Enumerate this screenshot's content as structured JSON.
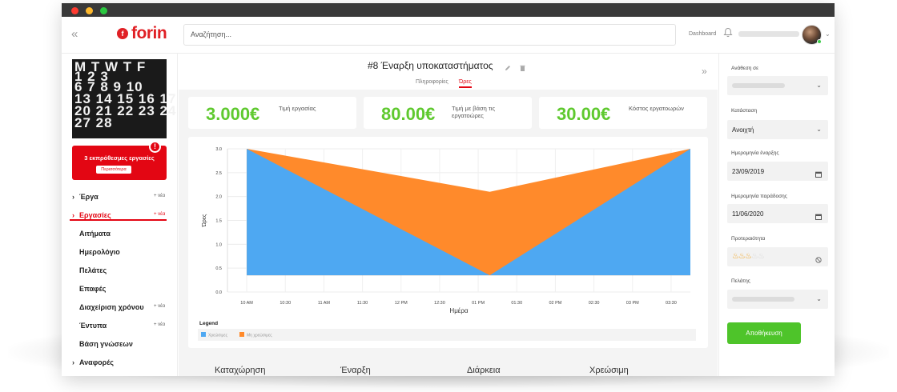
{
  "topbar": {
    "logo": "forin",
    "logo_mark": "f",
    "search_placeholder": "Αναζήτηση...",
    "dashboard_link": "Dashboard",
    "collapse_icon": "double-chevron-left-icon"
  },
  "sidebar": {
    "calendar_rows": [
      "M  T  W  T  F",
      "        1   2   3",
      "6  7  8  9 10",
      "13 14 15 16 17",
      "20 21 22 23 24",
      "27 28"
    ],
    "alert": {
      "text": "3 εκπρόθεσμες εργασίες",
      "button": "Περισσότερα",
      "badge": "!"
    },
    "items": [
      {
        "label": "Έργα",
        "arrow": "›",
        "new": "+ νέο"
      },
      {
        "label": "Εργασίες",
        "arrow": "›",
        "new": "+ νέα"
      },
      {
        "label": "Αιτήματα"
      },
      {
        "label": "Ημερολόγιο"
      },
      {
        "label": "Πελάτες"
      },
      {
        "label": "Επαφές"
      },
      {
        "label": "Διαχείριση χρόνου",
        "new": "+ νέο"
      },
      {
        "label": "Έντυπα",
        "new": "+ νέο"
      },
      {
        "label": "Βάση γνώσεων"
      },
      {
        "label": "Αναφορές",
        "arrow": "›"
      }
    ]
  },
  "main": {
    "title": "#8 Έναρξη υποκαταστήματος",
    "tabs": [
      "Πληροφορίες",
      "Ώρες"
    ],
    "active_tab": "Ώρες",
    "stats": [
      {
        "value": "3.000€",
        "label": "Τιμή εργασίας"
      },
      {
        "value": "80.00€",
        "label": "Τιμή με βάση τις εργατοώρες"
      },
      {
        "value": "30.00€",
        "label": "Κόστος εργατοωρών"
      }
    ],
    "table_headers": [
      "Καταχώρηση",
      "Έναρξη",
      "Διάρκεια",
      "Χρεώσιμη"
    ]
  },
  "chart_data": {
    "type": "area",
    "title": "",
    "xlabel": "Ημέρα",
    "ylabel": "Ώρες",
    "x": [
      "10 AM",
      "10:30",
      "11 AM",
      "11:30",
      "12 PM",
      "12:30",
      "01 PM",
      "01:30",
      "02 PM",
      "02:30",
      "03 PM",
      "03:30"
    ],
    "y_ticks": [
      "0.0",
      "0.5",
      "1.0",
      "1.5",
      "2.0",
      "2.5",
      "3.0"
    ],
    "ylim": [
      0,
      3
    ],
    "grid": true,
    "legend_title": "Legend",
    "legend_position": "bottom",
    "series": [
      {
        "name": "Χρεώσιμες",
        "color": "#4ea8f2",
        "points": [
          [
            0,
            3.0
          ],
          [
            6.3,
            0.35
          ],
          [
            11.5,
            3.0
          ]
        ]
      },
      {
        "name": "Μη χρεώσιμες",
        "color": "#ff8a2b",
        "points": [
          [
            0,
            3.0
          ],
          [
            6.3,
            2.1
          ],
          [
            11.5,
            3.0
          ]
        ]
      }
    ],
    "baseline": 0.35
  },
  "right_panel": {
    "assigned_label": "Ανάθεση σε",
    "status_label": "Κατάσταση",
    "status_value": "Ανοιχτή",
    "start_label": "Ημερομηνία έναρξης",
    "start_value": "23/09/2019",
    "due_label": "Ημερομηνία παράδοσης",
    "due_value": "11/06/2020",
    "priority_label": "Προτεραιότητα",
    "priority_level": 3,
    "priority_max": 5,
    "customer_label": "Πελάτης",
    "save_button": "Αποθήκευση"
  }
}
